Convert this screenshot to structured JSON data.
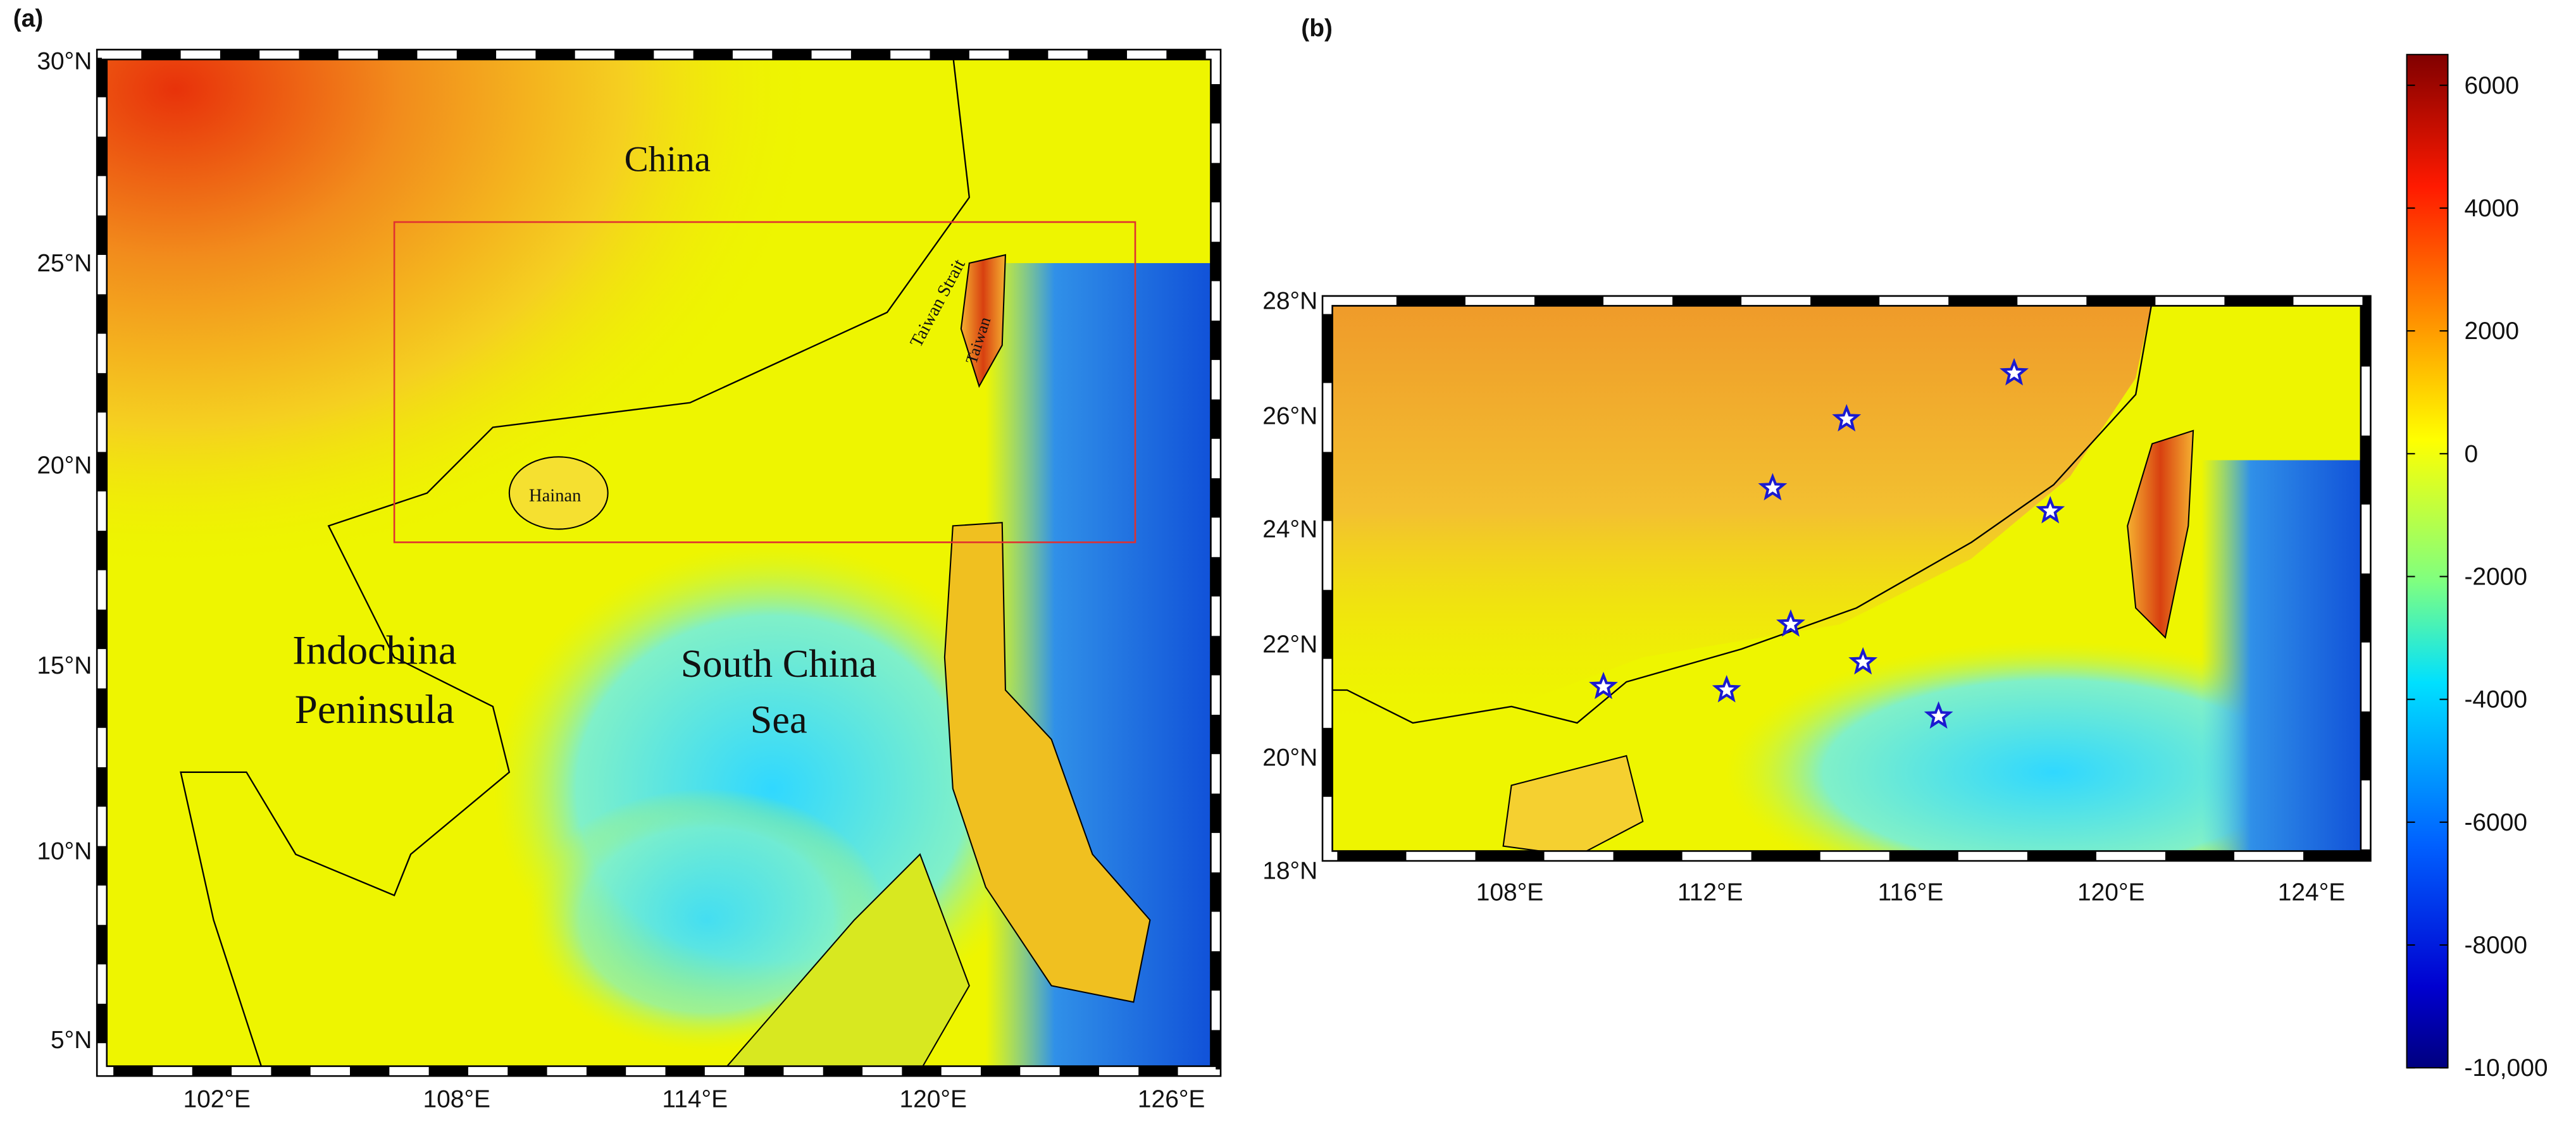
{
  "panel_a": {
    "label": "(a)",
    "lat_ticks": [
      "30°N",
      "25°N",
      "20°N",
      "15°N",
      "10°N",
      "5°N"
    ],
    "lon_ticks": [
      "102°E",
      "108°E",
      "114°E",
      "120°E",
      "126°E"
    ],
    "places": {
      "china": "China",
      "taiwan_strait": "Taiwan Strait",
      "taiwan": "Taiwan",
      "hainan": "Hainan",
      "indochina": [
        "Indochina",
        "Peninsula"
      ],
      "scs": [
        "South China",
        "Sea"
      ]
    }
  },
  "panel_b": {
    "label": "(b)",
    "lat_ticks": [
      "28°N",
      "26°N",
      "24°N",
      "22°N",
      "20°N",
      "18°N"
    ],
    "lon_ticks": [
      "108°E",
      "112°E",
      "116°E",
      "120°E",
      "124°E"
    ]
  },
  "colorbar": {
    "lim": [
      -10000,
      6500
    ],
    "ticks": [
      6000,
      4000,
      2000,
      0,
      -2000,
      -4000,
      -6000,
      -8000,
      {
        "value": -10000,
        "label": "-10,000"
      }
    ]
  }
}
